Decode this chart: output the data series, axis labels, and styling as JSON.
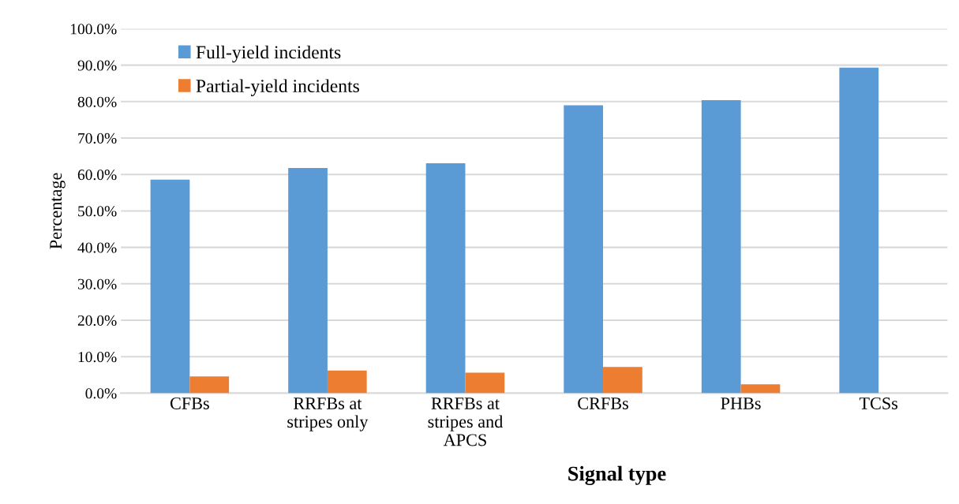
{
  "chart_data": {
    "type": "bar",
    "xlabel": "Signal type",
    "ylabel": "Percentage",
    "categories": [
      "CFBs",
      "RRFBs at\nstripes only",
      "RRFBs at\nstripes and\nAPCS",
      "CRFBs",
      "PHBs",
      "TCSs"
    ],
    "series": [
      {
        "name": "Full-yield incidents",
        "color": "#5b9bd5",
        "values": [
          58.6,
          61.8,
          63.1,
          79.0,
          80.4,
          89.3
        ]
      },
      {
        "name": "Partial-yield incidents",
        "color": "#ed7d31",
        "values": [
          4.6,
          6.2,
          5.6,
          7.2,
          2.4,
          0
        ]
      }
    ],
    "ylim": [
      0,
      100
    ],
    "yticks": [
      {
        "value": 0,
        "label": "0.0%"
      },
      {
        "value": 10,
        "label": "10.0%"
      },
      {
        "value": 20,
        "label": "20.0%"
      },
      {
        "value": 30,
        "label": "30.0%"
      },
      {
        "value": 40,
        "label": "40.0%"
      },
      {
        "value": 50,
        "label": "50.0%"
      },
      {
        "value": 60,
        "label": "60.0%"
      },
      {
        "value": 70,
        "label": "70.0%"
      },
      {
        "value": 80,
        "label": "80.0%"
      },
      {
        "value": 90,
        "label": "90.0%"
      },
      {
        "value": 100,
        "label": "100.0%"
      }
    ],
    "grid": "y",
    "legend": "top left"
  }
}
